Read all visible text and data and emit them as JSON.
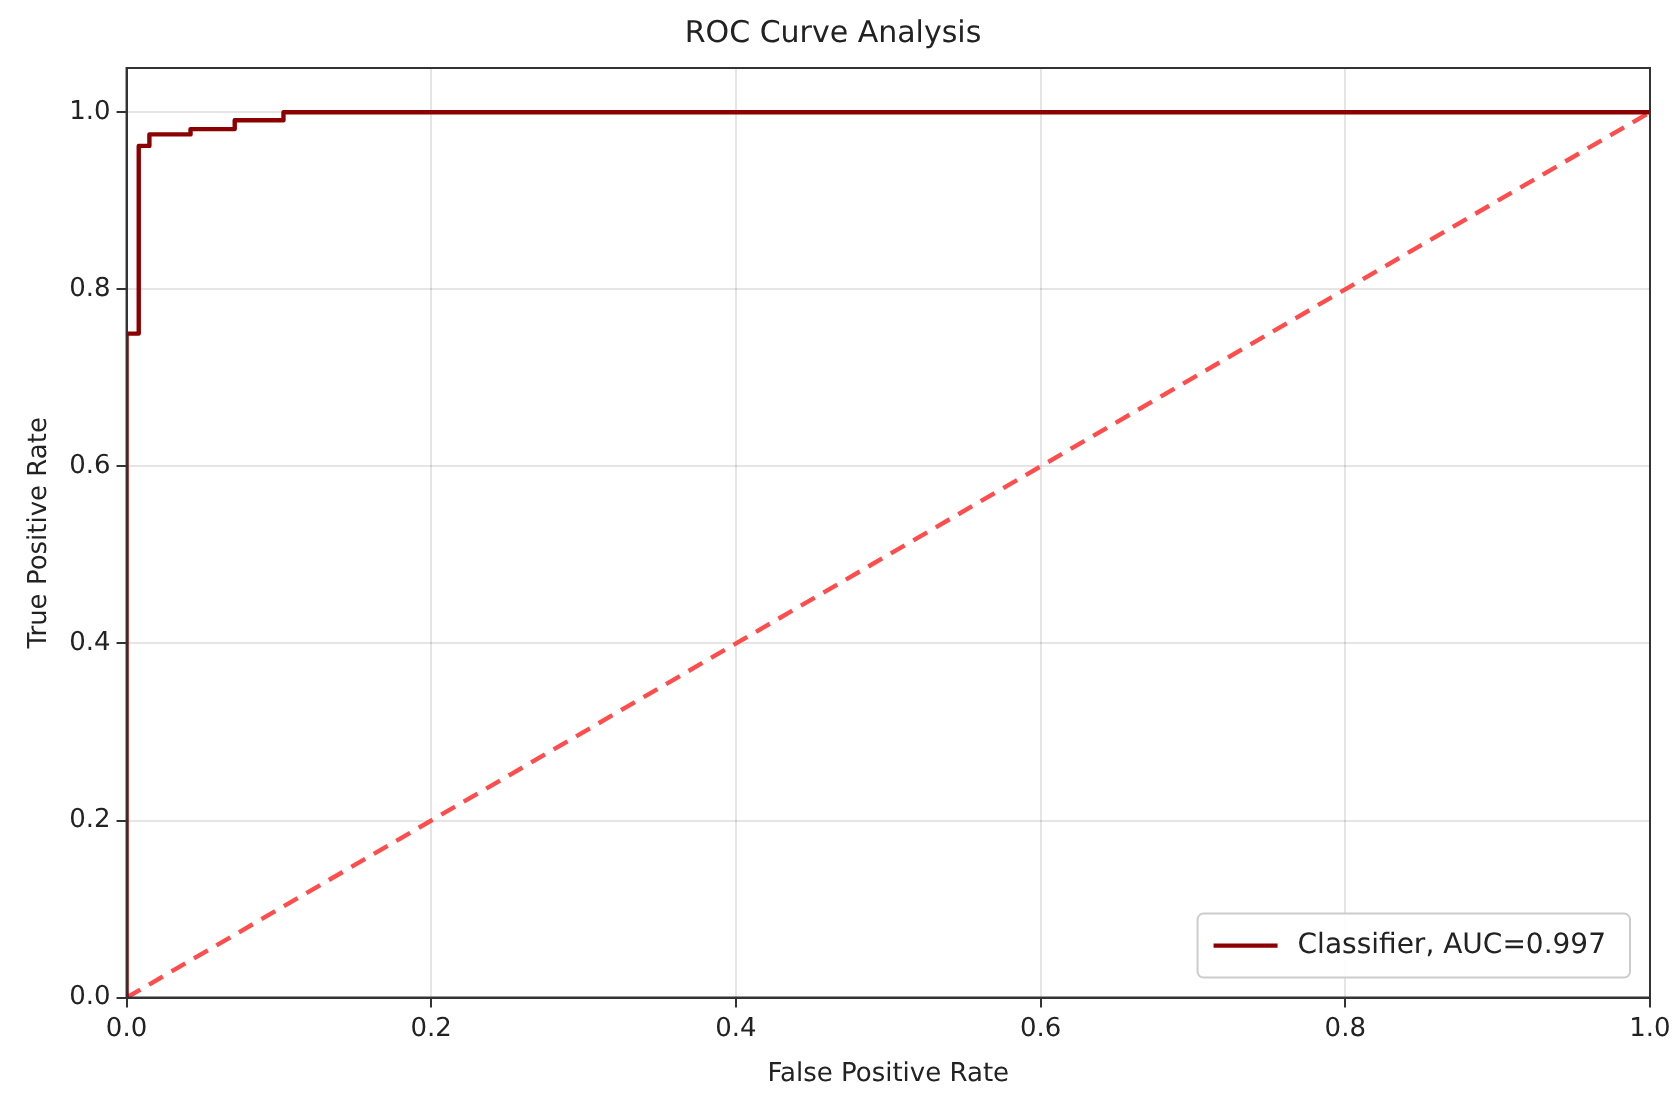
{
  "chart_data": {
    "type": "line",
    "title": "ROC Curve Analysis",
    "xlabel": "False Positive Rate",
    "ylabel": "True Positive Rate",
    "xlim": [
      0,
      1
    ],
    "ylim": [
      0,
      1.05
    ],
    "xticks": [
      {
        "value": 0,
        "label": "0.0"
      },
      0.2,
      0.4,
      0.6,
      0.8,
      {
        "value": 1,
        "label": "1.0"
      }
    ],
    "yticks": [
      {
        "value": 0,
        "label": "0.0"
      },
      0.2,
      0.4,
      0.6,
      0.8,
      {
        "value": 1,
        "label": "1.0"
      }
    ],
    "grid": true,
    "legend": "bottom right",
    "marker": "none",
    "series": [
      {
        "name": "Classifier, AUC=0.997",
        "type": "step",
        "color": "#8b0000",
        "line_style": "solid",
        "x": [
          0,
          0,
          0.008,
          0.015,
          0.042,
          0.071,
          0.103,
          1
        ],
        "values": [
          0,
          0.75,
          0.962,
          0.975,
          0.981,
          0.991,
          1,
          1
        ]
      },
      {
        "color": "#ff4d4d",
        "line_style": "dashed",
        "x": [
          0,
          1
        ],
        "values": [
          0,
          1
        ]
      }
    ]
  }
}
